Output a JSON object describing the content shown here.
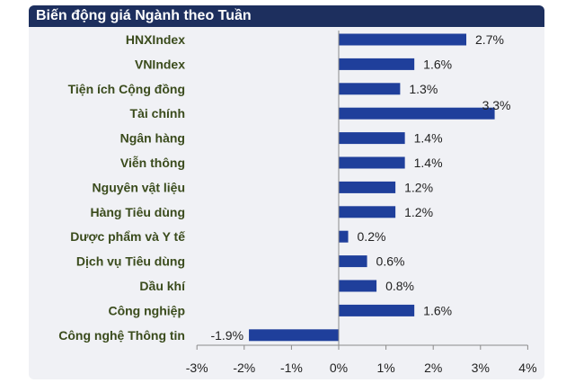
{
  "header": {
    "title": "Biến động giá Ngành theo Tuần"
  },
  "colors": {
    "bar": "#1f3f9b",
    "title_bg": "#1d2f5e",
    "category_text": "#3a4b1c",
    "axis": "#8a8a8a"
  },
  "chart_data": {
    "type": "bar",
    "orientation": "horizontal",
    "title": "Biến động giá Ngành theo Tuần",
    "categories": [
      "HNXIndex",
      "VNIndex",
      "Tiện ích Cộng đồng",
      "Tài chính",
      "Ngân hàng",
      "Viễn thông",
      "Nguyên vật liệu",
      "Hàng Tiêu dùng",
      "Dược phẩm và Y tế",
      "Dịch vụ Tiêu dùng",
      "Dầu khí",
      "Công nghiệp",
      "Công nghệ Thông tin"
    ],
    "values": [
      2.7,
      1.6,
      1.3,
      3.3,
      1.4,
      1.4,
      1.2,
      1.2,
      0.2,
      0.6,
      0.8,
      1.6,
      -1.9
    ],
    "data_labels": [
      "2.7%",
      "1.6%",
      "1.3%",
      "3.3%",
      "1.4%",
      "1.4%",
      "1.2%",
      "1.2%",
      "0.2%",
      "0.6%",
      "0.8%",
      "1.6%",
      "-1.9%"
    ],
    "xlim": [
      -3,
      4
    ],
    "x_ticks": [
      -3,
      -2,
      -1,
      0,
      1,
      2,
      3,
      4
    ],
    "x_tick_labels": [
      "-3%",
      "-2%",
      "-1%",
      "0%",
      "1%",
      "2%",
      "3%",
      "4%"
    ],
    "grid": false,
    "legend": "none"
  }
}
